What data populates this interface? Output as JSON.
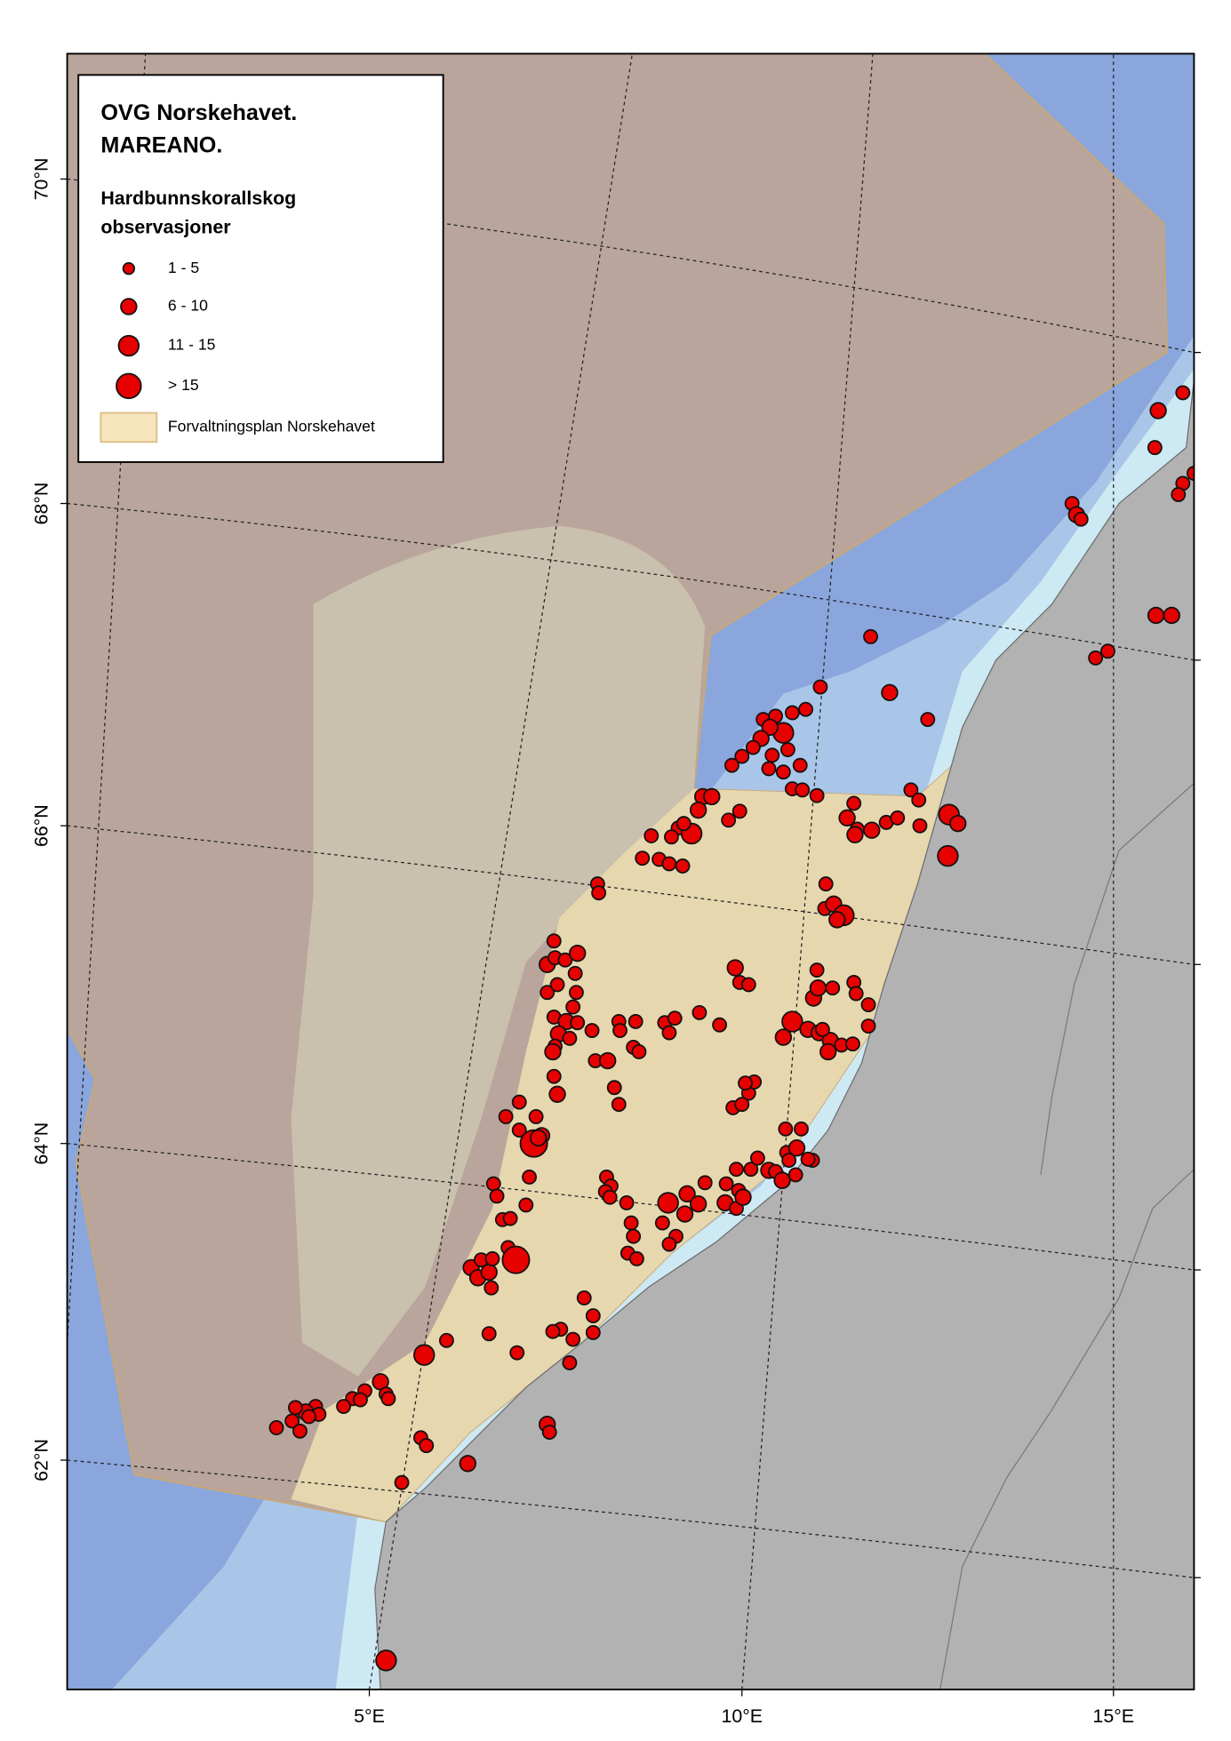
{
  "map": {
    "legend": {
      "title_lines": [
        "OVG Norskehavet.",
        "MAREANO."
      ],
      "subtitle_lines": [
        "Hardbunnskorallskog",
        "observasjoner"
      ],
      "classes": [
        "1 - 5",
        "6 - 10",
        "11 - 15",
        "> 15"
      ],
      "area": "Forvaltningsplan Norskehavet"
    },
    "lat_labels": [
      "70°N",
      "68°N",
      "66°N",
      "64°N",
      "62°N"
    ],
    "lon_labels": [
      "5°E",
      "10°E",
      "15°E"
    ]
  }
}
